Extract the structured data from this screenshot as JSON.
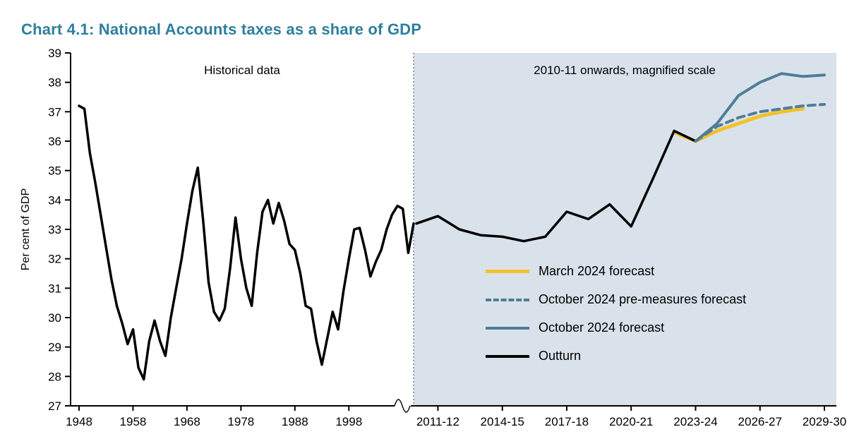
{
  "page": {
    "title": "Chart 4.1: National Accounts taxes as a share of GDP"
  },
  "chart": {
    "ylabel": "Per cent of GDP",
    "annotations": {
      "historical": "Historical data",
      "magnified": "2010-11 onwards, magnified scale"
    },
    "colors": {
      "title": "#2E7E9E",
      "march": "#F2C12B",
      "october": "#507D97",
      "outturn": "#000000",
      "right_bg": "#D9E2EB",
      "axis": "#000000"
    },
    "legend": [
      {
        "label": "March 2024 forecast",
        "color_key": "march",
        "style": "solid",
        "width": 5
      },
      {
        "label": "October 2024 pre-measures forecast",
        "color_key": "october",
        "style": "dashed",
        "width": 4
      },
      {
        "label": "October 2024 forecast",
        "color_key": "october",
        "style": "solid",
        "width": 4
      },
      {
        "label": "Outturn",
        "color_key": "outturn",
        "style": "solid",
        "width": 4
      }
    ]
  },
  "chart_data": {
    "type": "line",
    "title": "Chart 4.1: National Accounts taxes as a share of GDP",
    "ylabel": "Per cent of GDP",
    "ylim": [
      27,
      39
    ],
    "y_ticks": [
      27,
      28,
      29,
      30,
      31,
      32,
      33,
      34,
      35,
      36,
      37,
      38,
      39
    ],
    "grid": false,
    "legend_position": "inside-right",
    "x_axis": {
      "historical": {
        "start_year": 1948,
        "end_year": 2010,
        "ticks": [
          1948,
          1958,
          1968,
          1978,
          1988,
          1998
        ]
      },
      "recent": {
        "categories": [
          "2010-11",
          "2011-12",
          "2012-13",
          "2013-14",
          "2014-15",
          "2015-16",
          "2016-17",
          "2017-18",
          "2018-19",
          "2019-20",
          "2020-21",
          "2021-22",
          "2022-23",
          "2023-24",
          "2024-25",
          "2025-26",
          "2026-27",
          "2027-28",
          "2028-29",
          "2029-30"
        ],
        "ticks": [
          "2011-12",
          "2014-15",
          "2017-18",
          "2020-21",
          "2023-24",
          "2026-27",
          "2029-30"
        ]
      }
    },
    "series": [
      {
        "id": "historical",
        "name": "Outturn (historical data)",
        "region": "historical",
        "color_key": "outturn",
        "style": "solid",
        "width": 3.5,
        "years": [
          1948,
          1949,
          1950,
          1951,
          1952,
          1953,
          1954,
          1955,
          1956,
          1957,
          1958,
          1959,
          1960,
          1961,
          1962,
          1963,
          1964,
          1965,
          1966,
          1967,
          1968,
          1969,
          1970,
          1971,
          1972,
          1973,
          1974,
          1975,
          1976,
          1977,
          1978,
          1979,
          1980,
          1981,
          1982,
          1983,
          1984,
          1985,
          1986,
          1987,
          1988,
          1989,
          1990,
          1991,
          1992,
          1993,
          1994,
          1995,
          1996,
          1997,
          1998,
          1999,
          2000,
          2001,
          2002,
          2003,
          2004,
          2005,
          2006,
          2007,
          2008,
          2009,
          2010
        ],
        "values": [
          37.2,
          37.1,
          35.6,
          34.6,
          33.5,
          32.4,
          31.3,
          30.4,
          29.8,
          29.1,
          29.6,
          28.3,
          27.9,
          29.2,
          29.9,
          29.2,
          28.7,
          30.0,
          31.0,
          32.0,
          33.2,
          34.3,
          35.1,
          33.3,
          31.2,
          30.2,
          29.9,
          30.3,
          31.7,
          33.4,
          32.0,
          31.0,
          30.4,
          32.2,
          33.6,
          34.0,
          33.2,
          33.9,
          33.3,
          32.5,
          32.3,
          31.5,
          30.4,
          30.3,
          29.2,
          28.4,
          29.3,
          30.2,
          29.6,
          30.9,
          32.0,
          33.0,
          33.05,
          32.3,
          31.4,
          31.9,
          32.3,
          33.0,
          33.5,
          33.8,
          33.7,
          32.2,
          33.2
        ]
      },
      {
        "id": "march2024",
        "name": "March 2024 forecast",
        "region": "recent",
        "color_key": "march",
        "style": "solid",
        "width": 5,
        "categories": [
          "2022-23",
          "2023-24",
          "2024-25",
          "2025-26",
          "2026-27",
          "2027-28",
          "2028-29"
        ],
        "values": [
          36.3,
          36.0,
          36.35,
          36.6,
          36.85,
          37.0,
          37.1
        ]
      },
      {
        "id": "outturn_recent",
        "name": "Outturn",
        "region": "recent",
        "color_key": "outturn",
        "style": "solid",
        "width": 3.5,
        "categories": [
          "2010-11",
          "2011-12",
          "2012-13",
          "2013-14",
          "2014-15",
          "2015-16",
          "2016-17",
          "2017-18",
          "2018-19",
          "2019-20",
          "2020-21",
          "2021-22",
          "2022-23",
          "2023-24"
        ],
        "values": [
          33.2,
          33.45,
          33.0,
          32.8,
          32.75,
          32.6,
          32.75,
          33.6,
          33.35,
          33.85,
          33.1,
          34.7,
          36.35,
          36.0
        ]
      },
      {
        "id": "oct2024_pre",
        "name": "October 2024 pre-measures forecast",
        "region": "recent",
        "color_key": "october",
        "style": "dashed",
        "width": 4,
        "categories": [
          "2023-24",
          "2024-25",
          "2025-26",
          "2026-27",
          "2027-28",
          "2028-29",
          "2029-30"
        ],
        "values": [
          36.0,
          36.5,
          36.8,
          37.0,
          37.1,
          37.2,
          37.25
        ]
      },
      {
        "id": "oct2024",
        "name": "October 2024 forecast",
        "region": "recent",
        "color_key": "october",
        "style": "solid",
        "width": 4,
        "categories": [
          "2023-24",
          "2024-25",
          "2025-26",
          "2026-27",
          "2027-28",
          "2028-29",
          "2029-30"
        ],
        "values": [
          36.0,
          36.6,
          37.55,
          38.0,
          38.3,
          38.2,
          38.25
        ]
      }
    ]
  }
}
